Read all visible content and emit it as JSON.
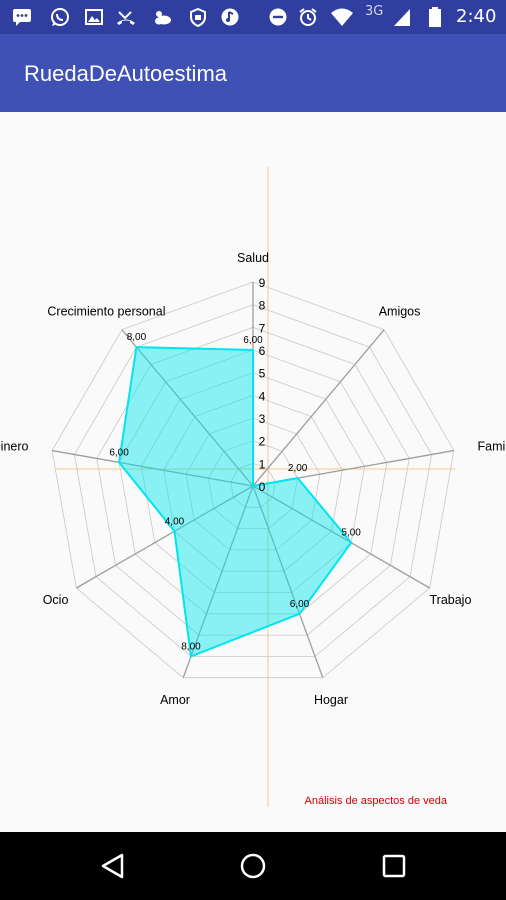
{
  "status_bar": {
    "network_label": "3G",
    "time": "2:40",
    "icons": [
      "chat-icon",
      "whatsapp-icon",
      "image-icon",
      "missed-call-icon",
      "weather-icon",
      "shield-icon",
      "music-icon",
      "do-not-disturb-icon",
      "alarm-icon",
      "wifi-icon",
      "signal-icon",
      "battery-icon"
    ]
  },
  "app_bar": {
    "title": "RuedaDeAutoestima"
  },
  "chart_data": {
    "type": "radar",
    "categories": [
      "Salud",
      "Amigos",
      "Familia",
      "Trabajo",
      "Hogar",
      "Amor",
      "Ocio",
      "Dinero",
      "Crecimiento personal"
    ],
    "series": [
      {
        "values": [
          6,
          0,
          2,
          5,
          6,
          8,
          4,
          6,
          8
        ],
        "color": "#00E5EE"
      }
    ],
    "value_labels": [
      "6,00",
      "",
      "2,00",
      "5,00",
      "6,00",
      "8,00",
      "4,00",
      "6,00",
      "8,00"
    ],
    "axis_ticks": [
      "0",
      "1",
      "2",
      "3",
      "4",
      "5",
      "6",
      "7",
      "8",
      "9"
    ],
    "ylim": [
      0,
      9
    ],
    "description": "Análisis de aspectos de veda",
    "colors": {
      "fill": "#00E5EE",
      "web": "#9E9E9E",
      "center_axis": "#F3C98B",
      "description": "#D50000"
    }
  },
  "nav_bar": {
    "icons": [
      "back-icon",
      "home-icon",
      "recents-icon"
    ]
  }
}
